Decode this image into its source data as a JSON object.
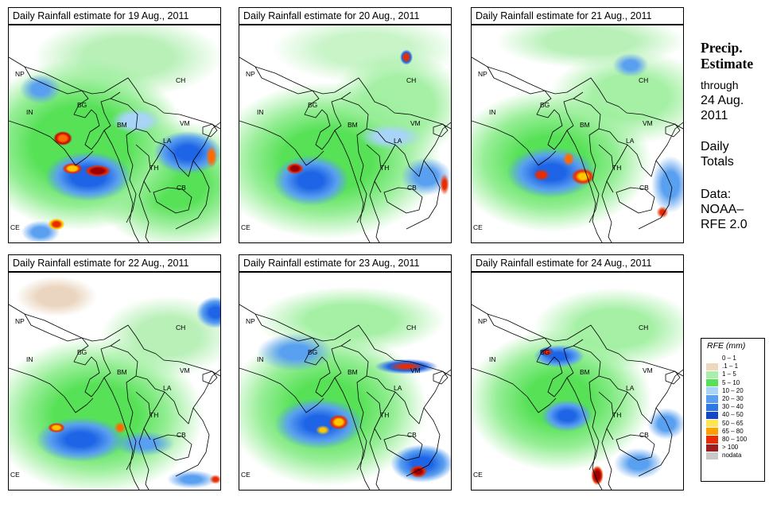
{
  "panels": [
    {
      "title": "Daily Rainfall estimate for  19 Aug., 2011"
    },
    {
      "title": "Daily Rainfall estimate for  20 Aug., 2011"
    },
    {
      "title": "Daily Rainfall estimate for  21 Aug., 2011"
    },
    {
      "title": "Daily Rainfall estimate for  22 Aug., 2011"
    },
    {
      "title": "Daily Rainfall estimate for  23 Aug., 2011"
    },
    {
      "title": "Daily Rainfall estimate for  24 Aug., 2011"
    }
  ],
  "map_labels": {
    "np": "NP",
    "ch": "CH",
    "in": "IN",
    "bg": "BG",
    "bm": "BM",
    "vm": "VM",
    "la": "LA",
    "th": "TH",
    "cb": "CB",
    "ce": "CE"
  },
  "side": {
    "heading_line1": "Precip.",
    "heading_line2": "Estimate",
    "through": "through",
    "date_line1": "24 Aug.",
    "date_line2": "2011",
    "daily_line1": "Daily",
    "daily_line2": "Totals",
    "data_line1": "Data:",
    "data_line2": "NOAA–",
    "data_line3": "RFE 2.0"
  },
  "legend": {
    "title": "RFE (mm)",
    "items": [
      {
        "label": "0 – 1",
        "color": "#ffffff"
      },
      {
        "label": ".1 – 1",
        "color": "#eed7bd"
      },
      {
        "label": "1 – 5",
        "color": "#a9eea9"
      },
      {
        "label": "5 – 10",
        "color": "#56e156"
      },
      {
        "label": "10 – 20",
        "color": "#a8d4f8"
      },
      {
        "label": "20 – 30",
        "color": "#5aa0f0"
      },
      {
        "label": "30 – 40",
        "color": "#2d78e6"
      },
      {
        "label": "40 – 50",
        "color": "#1446c8"
      },
      {
        "label": "50 – 65",
        "color": "#ffe650"
      },
      {
        "label": "65 – 80",
        "color": "#ffa000"
      },
      {
        "label": "80 – 100",
        "color": "#e62c00"
      },
      {
        "label": "> 100",
        "color": "#9c1e1e"
      },
      {
        "label": "nodata",
        "color": "#c8c8c8"
      }
    ]
  }
}
